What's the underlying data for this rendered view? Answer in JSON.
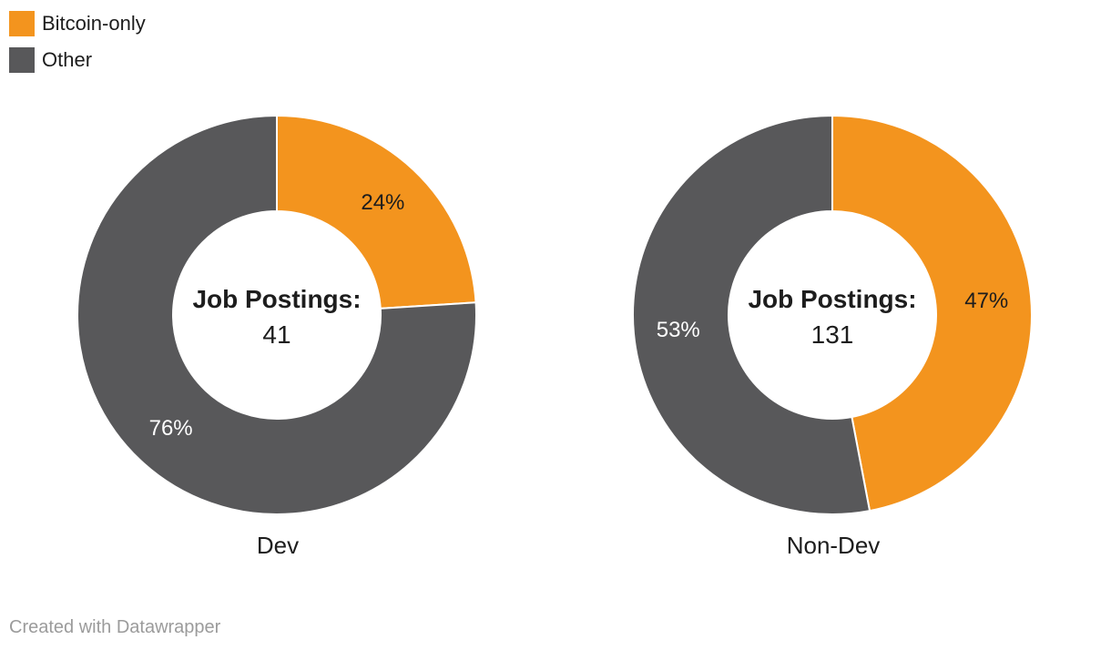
{
  "legend": {
    "items": [
      {
        "label": "Bitcoin-only",
        "color": "#F3941E"
      },
      {
        "label": "Other",
        "color": "#58585A"
      }
    ]
  },
  "chart_data": [
    {
      "type": "pie",
      "subtype": "donut",
      "title": "Dev",
      "center_label": "Job Postings:",
      "center_value": "41",
      "legend_position": "top-left",
      "slices": [
        {
          "name": "Bitcoin-only",
          "value": 24,
          "label": "24%",
          "color": "#F3941E",
          "label_color": "#1d1d1d"
        },
        {
          "name": "Other",
          "value": 76,
          "label": "76%",
          "color": "#58585A",
          "label_color": "#ffffff"
        }
      ]
    },
    {
      "type": "pie",
      "subtype": "donut",
      "title": "Non-Dev",
      "center_label": "Job Postings:",
      "center_value": "131",
      "legend_position": "top-left",
      "slices": [
        {
          "name": "Bitcoin-only",
          "value": 47,
          "label": "47%",
          "color": "#F3941E",
          "label_color": "#1d1d1d"
        },
        {
          "name": "Other",
          "value": 53,
          "label": "53%",
          "color": "#58585A",
          "label_color": "#ffffff"
        }
      ]
    }
  ],
  "footer": {
    "credit": "Created with Datawrapper"
  }
}
